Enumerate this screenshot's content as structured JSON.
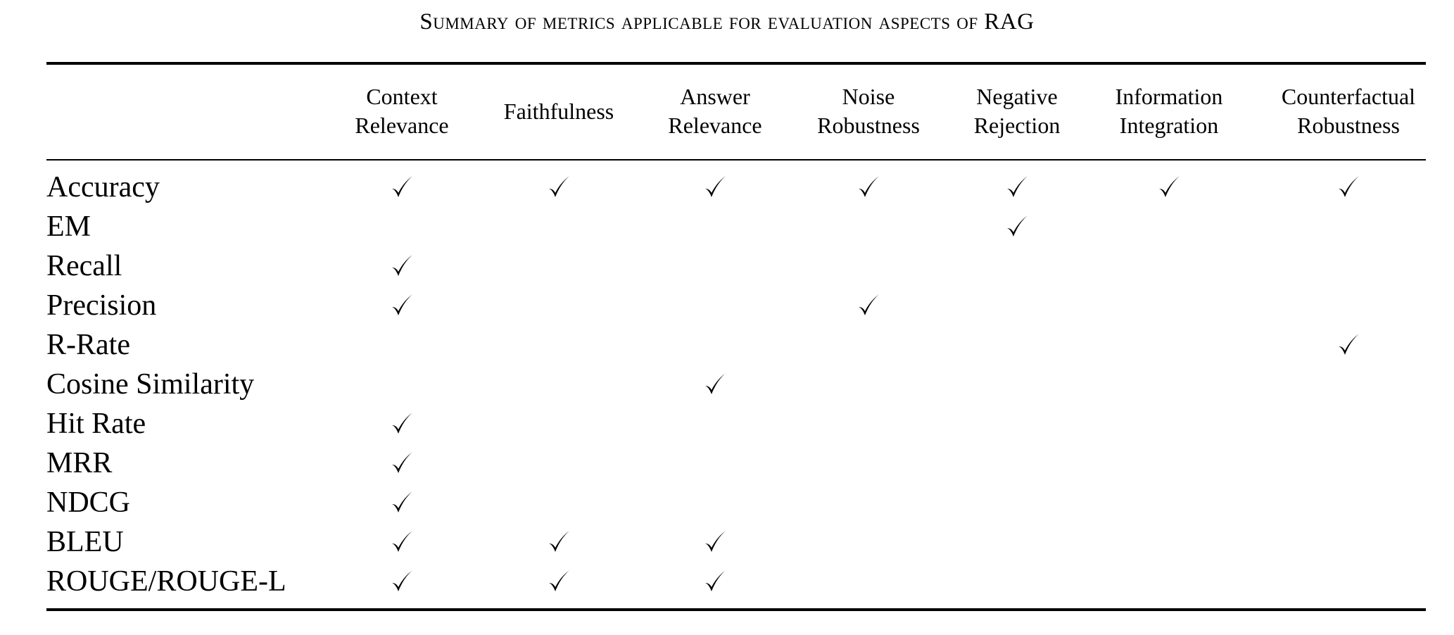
{
  "caption": "Summary of metrics applicable for evaluation aspects of RAG",
  "columns": [
    {
      "line1": "Context",
      "line2": "Relevance"
    },
    {
      "line1": "Faithfulness",
      "line2": ""
    },
    {
      "line1": "Answer",
      "line2": "Relevance"
    },
    {
      "line1": "Noise",
      "line2": "Robustness"
    },
    {
      "line1": "Negative",
      "line2": "Rejection"
    },
    {
      "line1": "Information",
      "line2": "Integration"
    },
    {
      "line1": "Counterfactual",
      "line2": "Robustness"
    }
  ],
  "rows": [
    {
      "label": "Accuracy",
      "checks": [
        true,
        true,
        true,
        true,
        true,
        true,
        true
      ]
    },
    {
      "label": "EM",
      "checks": [
        false,
        false,
        false,
        false,
        true,
        false,
        false
      ]
    },
    {
      "label": "Recall",
      "checks": [
        true,
        false,
        false,
        false,
        false,
        false,
        false
      ]
    },
    {
      "label": "Precision",
      "checks": [
        true,
        false,
        false,
        true,
        false,
        false,
        false
      ]
    },
    {
      "label": "R-Rate",
      "checks": [
        false,
        false,
        false,
        false,
        false,
        false,
        true
      ]
    },
    {
      "label": "Cosine Similarity",
      "checks": [
        false,
        false,
        true,
        false,
        false,
        false,
        false
      ]
    },
    {
      "label": "Hit Rate",
      "checks": [
        true,
        false,
        false,
        false,
        false,
        false,
        false
      ]
    },
    {
      "label": "MRR",
      "checks": [
        true,
        false,
        false,
        false,
        false,
        false,
        false
      ]
    },
    {
      "label": "NDCG",
      "checks": [
        true,
        false,
        false,
        false,
        false,
        false,
        false
      ]
    },
    {
      "label": "BLEU",
      "checks": [
        true,
        true,
        true,
        false,
        false,
        false,
        false
      ]
    },
    {
      "label": "ROUGE/ROUGE-L",
      "checks": [
        true,
        true,
        true,
        false,
        false,
        false,
        false
      ]
    }
  ]
}
